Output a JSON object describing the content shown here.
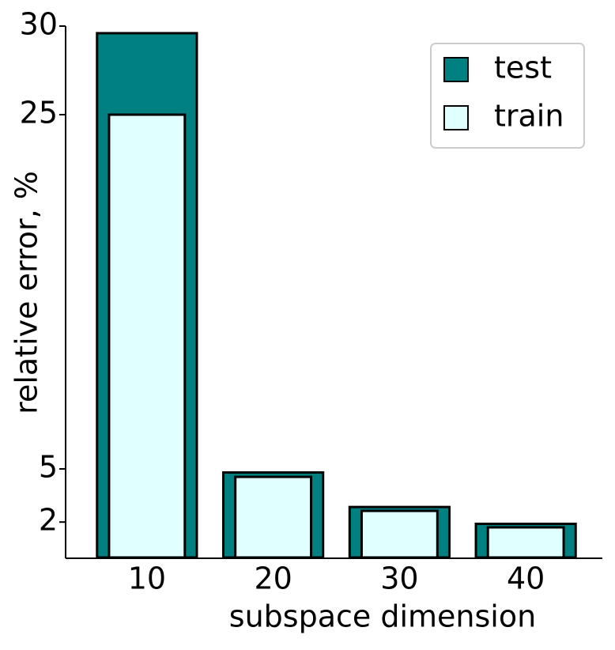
{
  "chart_data": {
    "type": "bar",
    "overlap": true,
    "xlabel": "subspace dimension",
    "ylabel": "relative error, %",
    "categories": [
      "10",
      "20",
      "30",
      "40"
    ],
    "series": [
      {
        "name": "test",
        "color": "#008080",
        "values": [
          29.6,
          4.8,
          2.85,
          1.9
        ]
      },
      {
        "name": "train",
        "color": "#e0ffff",
        "values": [
          25.0,
          4.55,
          2.63,
          1.7
        ]
      }
    ],
    "ylim": [
      0,
      30
    ],
    "yticks": [
      2,
      5,
      25,
      30
    ],
    "grid": false,
    "legend": "upper right"
  }
}
